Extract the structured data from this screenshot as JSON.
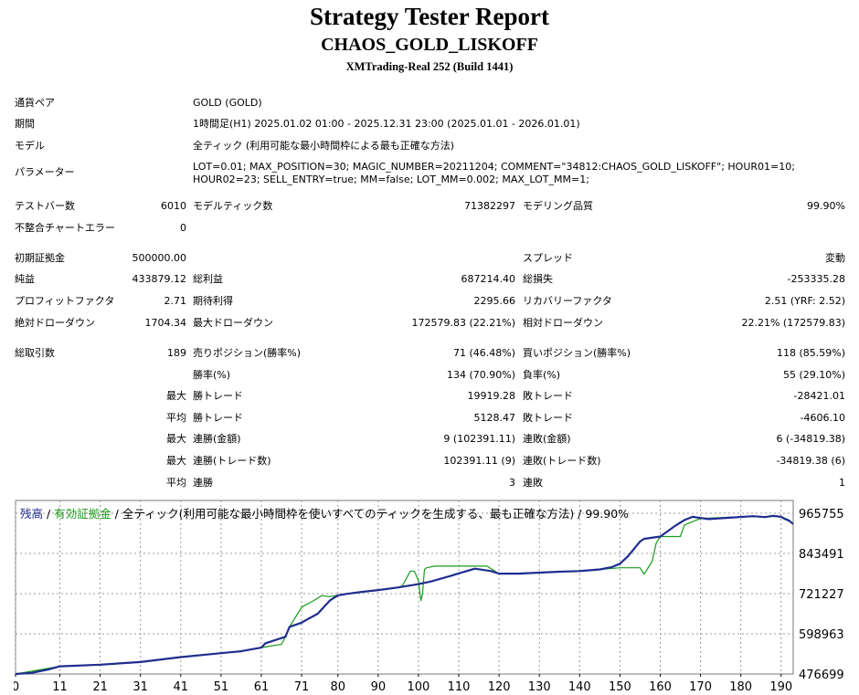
{
  "header": {
    "title": "Strategy Tester Report",
    "ea_name": "CHAOS_GOLD_LISKOFF",
    "server": "XMTrading-Real 252 (Build 1441)"
  },
  "settings": {
    "symbol_label": "通貨ペア",
    "symbol": "GOLD (GOLD)",
    "period_label": "期間",
    "period": "1時間足(H1) 2025.01.02 01:00 - 2025.12.31 23:00 (2025.01.01 - 2026.01.01)",
    "model_label": "モデル",
    "model": "全ティック (利用可能な最小時間枠による最も正確な方法)",
    "params_label": "パラメーター",
    "params_line1": "LOT=0.01; MAX_POSITION=30; MAGIC_NUMBER=20211204; COMMENT=\"34812:CHAOS_GOLD_LISKOFF\"; HOUR01=10;",
    "params_line2": "HOUR02=23; SELL_ENTRY=true; MM=false; LOT_MM=0.002; MAX_LOT_MM=1;"
  },
  "stats": {
    "bars_label": "テストバー数",
    "bars": "6010",
    "ticks_label": "モデルティック数",
    "ticks": "71382297",
    "quality_label": "モデリング品質",
    "quality": "99.90%",
    "mismatch_label": "不整合チャートエラー",
    "mismatch": "0",
    "deposit_label": "初期証拠金",
    "deposit": "500000.00",
    "spread_label": "スプレッド",
    "spread": "変動",
    "net_label": "純益",
    "net": "433879.12",
    "gross_profit_label": "総利益",
    "gross_profit": "687214.40",
    "gross_loss_label": "総損失",
    "gross_loss": "-253335.28",
    "pf_label": "プロフィットファクタ",
    "pf": "2.71",
    "expected_label": "期待利得",
    "expected": "2295.66",
    "recovery_label": "リカバリーファクタ",
    "recovery": "2.51 (YRF: 2.52)",
    "abs_dd_label": "絶対ドローダウン",
    "abs_dd": "1704.34",
    "max_dd_label": "最大ドローダウン",
    "max_dd": "172579.83 (22.21%)",
    "rel_dd_label": "相対ドローダウン",
    "rel_dd": "22.21% (172579.83)",
    "trades_label": "総取引数",
    "trades": "189",
    "short_label": "売りポジション(勝率%)",
    "short": "71 (46.48%)",
    "long_label": "買いポジション(勝率%)",
    "long": "118 (85.59%)",
    "win_rate_label": "勝率(%)",
    "win_rate": "134 (70.90%)",
    "loss_rate_label": "負率(%)",
    "loss_rate": "55 (29.10%)",
    "max_label": "最大",
    "avg_label": "平均",
    "win_trade_label": "勝トレード",
    "loss_trade_label": "敗トレード",
    "max_win": "19919.28",
    "max_loss": "-28421.01",
    "avg_win": "5128.47",
    "avg_loss": "-4606.10",
    "cons_wins_amt_label": "連勝(金額)",
    "cons_wins_amt": "9 (102391.11)",
    "cons_losses_amt_label": "連敗(金額)",
    "cons_losses_amt": "6 (-34819.38)",
    "max_cons_profit_label": "連勝(トレード数)",
    "max_cons_profit": "102391.11 (9)",
    "max_cons_loss_label": "連敗(トレード数)",
    "max_cons_loss": "-34819.38 (6)",
    "cons_win_label": "連勝",
    "avg_cons_win": "3",
    "cons_loss_label": "連敗",
    "avg_cons_loss": "1"
  },
  "chart_legend": {
    "balance": "残高",
    "sep1": " / ",
    "equity": "有効証拠金",
    "rest": " / 全ティック(利用可能な最小時間枠を使いすべてのティックを生成する、最も正確な方法) / 99.90%"
  },
  "colors": {
    "balance": "#1f2d8f",
    "equity": "#1a9a1a",
    "grid": "#9a9a9a"
  },
  "chart_data": {
    "type": "line",
    "x_ticks": [
      "0",
      "11",
      "21",
      "31",
      "41",
      "51",
      "61",
      "71",
      "80",
      "90",
      "100",
      "110",
      "120",
      "130",
      "140",
      "150",
      "160",
      "170",
      "180",
      "190"
    ],
    "y_ticks": [
      "965755",
      "843491",
      "721227",
      "598963",
      "476699"
    ],
    "ylim": [
      476699,
      965755
    ],
    "xlim": [
      0,
      193
    ],
    "series": [
      {
        "name": "残高",
        "x": [
          0,
          4,
          8,
          11,
          21,
          31,
          41,
          51,
          56,
          61,
          62,
          67,
          68,
          71,
          72,
          75,
          78,
          80,
          82,
          85,
          90,
          95,
          100,
          103,
          108,
          110,
          114,
          118,
          120,
          125,
          130,
          135,
          140,
          145,
          148,
          150,
          152,
          155,
          156,
          160,
          164,
          166,
          168,
          172,
          178,
          183,
          186,
          188,
          190,
          191,
          192,
          193
        ],
        "y": [
          476699,
          480000,
          490000,
          500000,
          505000,
          513000,
          528000,
          540000,
          546000,
          557000,
          570000,
          590000,
          620000,
          633000,
          640000,
          660000,
          700000,
          716000,
          720000,
          725000,
          732000,
          740000,
          750000,
          758000,
          775000,
          783000,
          797000,
          790000,
          782000,
          782000,
          785000,
          788000,
          790000,
          795000,
          802000,
          812000,
          835000,
          880000,
          888000,
          895000,
          930000,
          945000,
          955000,
          948000,
          953000,
          957000,
          954000,
          958000,
          955000,
          948000,
          943000,
          933000
        ]
      },
      {
        "name": "有効証拠金",
        "x": [
          0,
          11,
          21,
          31,
          41,
          51,
          56,
          61,
          65,
          66,
          67,
          68,
          70,
          71,
          74,
          76,
          78,
          80,
          85,
          90,
          95,
          96,
          98,
          99,
          100,
          100.6,
          101,
          101.5,
          102,
          104,
          110,
          117,
          120,
          130,
          140,
          150,
          155,
          156,
          158,
          159,
          160,
          165,
          166,
          170,
          180,
          190,
          192,
          193
        ],
        "y": [
          476699,
          500000,
          505000,
          513000,
          528000,
          540000,
          546000,
          557000,
          565000,
          567000,
          590000,
          620000,
          660000,
          680000,
          700000,
          715000,
          712000,
          716000,
          725000,
          732000,
          740000,
          745000,
          790000,
          790000,
          760000,
          700000,
          720000,
          795000,
          800000,
          805000,
          805000,
          805000,
          782000,
          785000,
          790000,
          800000,
          800000,
          780000,
          820000,
          875000,
          895000,
          895000,
          930000,
          950000,
          955000,
          956000,
          945000,
          933000
        ]
      }
    ]
  }
}
